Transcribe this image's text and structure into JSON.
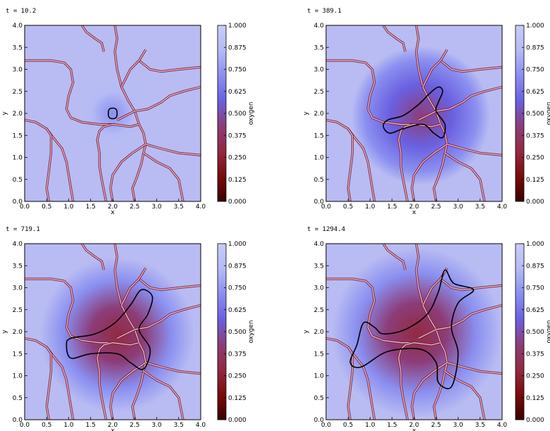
{
  "colors": {
    "background": "#b8bcf2",
    "vessel_outer": "#7a2240",
    "vessel_inner": "#f2c9d6",
    "contour": "#000000",
    "colormap": [
      "#3a0000",
      "#7a0b0b",
      "#922a42",
      "#8c3d78",
      "#6a60e0",
      "#8a8ff0",
      "#b5bbf5",
      "#c8ccf8"
    ]
  },
  "chart_data": [
    {
      "type": "heatmap",
      "title": "t =  10.2",
      "xlabel": "x",
      "ylabel": "y",
      "colorbar_label": "oxygen",
      "xlim": [
        0,
        4
      ],
      "ylim": [
        0,
        4
      ],
      "xticks": [
        "0.0",
        "0.5",
        "1.0",
        "1.5",
        "2.0",
        "2.5",
        "3.0",
        "3.5",
        "4.0"
      ],
      "yticks": [
        "0.0",
        "0.5",
        "1.0",
        "1.5",
        "2.0",
        "2.5",
        "3.0",
        "3.5",
        "4.0"
      ],
      "colorbar_ticks": [
        "0.000",
        "0.125",
        "0.250",
        "0.375",
        "0.500",
        "0.625",
        "0.750",
        "0.875",
        "1.000"
      ],
      "tumor_boundary": [
        [
          1.9,
          2.0
        ],
        [
          1.92,
          1.91
        ],
        [
          2.0,
          1.88
        ],
        [
          2.08,
          1.91
        ],
        [
          2.1,
          2.0
        ],
        [
          2.08,
          2.09
        ],
        [
          2.0,
          2.12
        ],
        [
          1.92,
          2.09
        ]
      ],
      "oxygen_level_min": 0.85
    },
    {
      "type": "heatmap",
      "title": "t =  389.1",
      "xlabel": "x",
      "ylabel": "y",
      "colorbar_label": "oxygen",
      "xlim": [
        0,
        4
      ],
      "ylim": [
        0,
        4
      ],
      "xticks": [
        "0.0",
        "0.5",
        "1.0",
        "1.5",
        "2.0",
        "2.5",
        "3.0",
        "3.5",
        "4.0"
      ],
      "yticks": [
        "0.0",
        "0.5",
        "1.0",
        "1.5",
        "2.0",
        "2.5",
        "3.0",
        "3.5",
        "4.0"
      ],
      "colorbar_ticks": [
        "0.000",
        "0.125",
        "0.250",
        "0.375",
        "0.500",
        "0.625",
        "0.750",
        "0.875",
        "1.000"
      ],
      "tumor_boundary": [
        [
          1.3,
          1.7
        ],
        [
          1.4,
          1.85
        ],
        [
          1.75,
          1.95
        ],
        [
          2.1,
          2.2
        ],
        [
          2.35,
          2.45
        ],
        [
          2.55,
          2.6
        ],
        [
          2.65,
          2.5
        ],
        [
          2.55,
          2.25
        ],
        [
          2.5,
          2.05
        ],
        [
          2.7,
          1.75
        ],
        [
          2.65,
          1.45
        ],
        [
          2.45,
          1.55
        ],
        [
          2.2,
          1.75
        ],
        [
          1.75,
          1.65
        ],
        [
          1.45,
          1.55
        ]
      ],
      "oxygen_level_min": 0.5
    },
    {
      "type": "heatmap",
      "title": "t =  719.1",
      "xlabel": "x",
      "ylabel": "y",
      "colorbar_label": "oxygen",
      "xlim": [
        0,
        4
      ],
      "ylim": [
        0,
        4
      ],
      "xticks": [
        "0.0",
        "0.5",
        "1.0",
        "1.5",
        "2.0",
        "2.5",
        "3.0",
        "3.5",
        "4.0"
      ],
      "yticks": [
        "0.0",
        "0.5",
        "1.0",
        "1.5",
        "2.0",
        "2.5",
        "3.0",
        "3.5",
        "4.0"
      ],
      "colorbar_ticks": [
        "0.000",
        "0.125",
        "0.250",
        "0.375",
        "0.500",
        "0.625",
        "0.750",
        "0.875",
        "1.000"
      ],
      "tumor_boundary": [
        [
          0.95,
          1.7
        ],
        [
          1.05,
          1.85
        ],
        [
          1.6,
          1.95
        ],
        [
          2.05,
          2.2
        ],
        [
          2.4,
          2.6
        ],
        [
          2.65,
          2.95
        ],
        [
          2.9,
          2.8
        ],
        [
          2.8,
          2.4
        ],
        [
          2.6,
          2.05
        ],
        [
          2.85,
          1.6
        ],
        [
          2.7,
          1.15
        ],
        [
          2.4,
          1.3
        ],
        [
          2.1,
          1.5
        ],
        [
          1.5,
          1.5
        ],
        [
          1.05,
          1.4
        ]
      ],
      "oxygen_level_min": 0.42
    },
    {
      "type": "heatmap",
      "title": "t =  1294.4",
      "xlabel": "x",
      "ylabel": "y",
      "colorbar_label": "oxygen",
      "xlim": [
        0,
        4
      ],
      "ylim": [
        0,
        4
      ],
      "xticks": [
        "0.0",
        "0.5",
        "1.0",
        "1.5",
        "2.0",
        "2.5",
        "3.0",
        "3.5",
        "4.0"
      ],
      "yticks": [
        "0.0",
        "0.5",
        "1.0",
        "1.5",
        "2.0",
        "2.5",
        "3.0",
        "3.5",
        "4.0"
      ],
      "colorbar_ticks": [
        "0.000",
        "0.125",
        "0.250",
        "0.375",
        "0.500",
        "0.625",
        "0.750",
        "0.875",
        "1.000"
      ],
      "tumor_boundary": [
        [
          0.55,
          1.3
        ],
        [
          0.7,
          1.7
        ],
        [
          0.85,
          2.2
        ],
        [
          1.1,
          2.1
        ],
        [
          1.3,
          1.95
        ],
        [
          1.8,
          2.05
        ],
        [
          2.3,
          2.4
        ],
        [
          2.55,
          2.9
        ],
        [
          2.7,
          3.4
        ],
        [
          2.9,
          3.1
        ],
        [
          3.35,
          2.95
        ],
        [
          3.0,
          2.65
        ],
        [
          2.85,
          2.1
        ],
        [
          3.0,
          1.5
        ],
        [
          2.85,
          0.75
        ],
        [
          2.55,
          0.85
        ],
        [
          2.5,
          1.3
        ],
        [
          2.15,
          1.6
        ],
        [
          1.4,
          1.55
        ],
        [
          0.8,
          1.2
        ]
      ],
      "oxygen_level_min": 0.34
    }
  ]
}
